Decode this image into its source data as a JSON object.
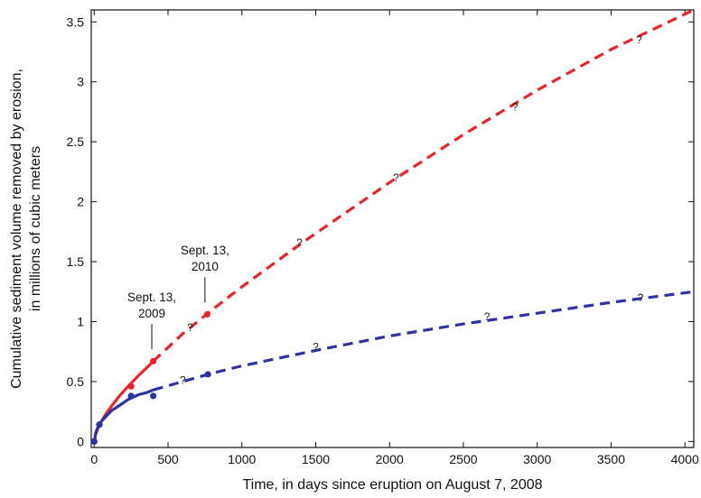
{
  "chart_data": {
    "type": "line",
    "title": "",
    "xlabel": "Time, in days since eruption on August 7, 2008",
    "ylabel_line1": "Cumulative sediment volume removed by erosion,",
    "ylabel_line2": "in millions of cubic meters",
    "xlim": [
      -20,
      4060
    ],
    "ylim": [
      -0.05,
      3.6
    ],
    "x_ticks": [
      0,
      500,
      1000,
      1500,
      2000,
      2500,
      3000,
      3500,
      4000
    ],
    "y_ticks": [
      0,
      0.5,
      1,
      1.5,
      2,
      2.5,
      3,
      3.5
    ],
    "grid": false,
    "legend": "none",
    "series": [
      {
        "color": "#e8252b",
        "observed": {
          "x": [
            0,
            35,
            250,
            400,
            765
          ],
          "y": [
            0,
            0.14,
            0.46,
            0.67,
            1.06
          ]
        },
        "fit_solid": {
          "x": [
            0,
            10,
            25,
            50,
            80,
            120,
            170,
            230,
            300,
            360,
            400
          ],
          "y": [
            0,
            0.06,
            0.11,
            0.17,
            0.23,
            0.3,
            0.38,
            0.46,
            0.55,
            0.62,
            0.67
          ]
        },
        "projection_dashed": {
          "x": [
            400,
            600,
            800,
            1000,
            1400,
            2000,
            2500,
            3000,
            3500,
            4060
          ],
          "y": [
            0.67,
            0.9,
            1.1,
            1.29,
            1.65,
            2.16,
            2.56,
            2.93,
            3.27,
            3.6
          ]
        },
        "question_marks": {
          "x": [
            650,
            1390,
            2045,
            2850,
            3690
          ],
          "y": [
            0.95,
            1.66,
            2.2,
            2.79,
            3.35
          ]
        }
      },
      {
        "color": "#2e33a0",
        "observed": {
          "x": [
            0,
            35,
            250,
            400,
            770
          ],
          "y": [
            0,
            0.14,
            0.38,
            0.38,
            0.56
          ]
        },
        "fit_solid": {
          "x": [
            0,
            10,
            25,
            50,
            80,
            120,
            170,
            230,
            300,
            360,
            400
          ],
          "y": [
            0,
            0.07,
            0.12,
            0.17,
            0.21,
            0.26,
            0.3,
            0.35,
            0.39,
            0.41,
            0.43
          ]
        },
        "projection_dashed": {
          "x": [
            400,
            600,
            800,
            1000,
            1500,
            2000,
            2500,
            3000,
            3500,
            4060
          ],
          "y": [
            0.43,
            0.5,
            0.57,
            0.63,
            0.76,
            0.88,
            0.98,
            1.07,
            1.16,
            1.25
          ]
        },
        "question_marks": {
          "x": [
            600,
            1500,
            2660,
            3700
          ],
          "y": [
            0.51,
            0.79,
            1.04,
            1.2
          ]
        }
      }
    ],
    "annotations": [
      {
        "text_line1": "Sept. 13,",
        "text_line2": "2009",
        "x": 390,
        "y": 0.77
      },
      {
        "text_line1": "Sept. 13,",
        "text_line2": "2010",
        "x": 750,
        "y": 1.16
      }
    ],
    "question_mark_label": "?"
  }
}
